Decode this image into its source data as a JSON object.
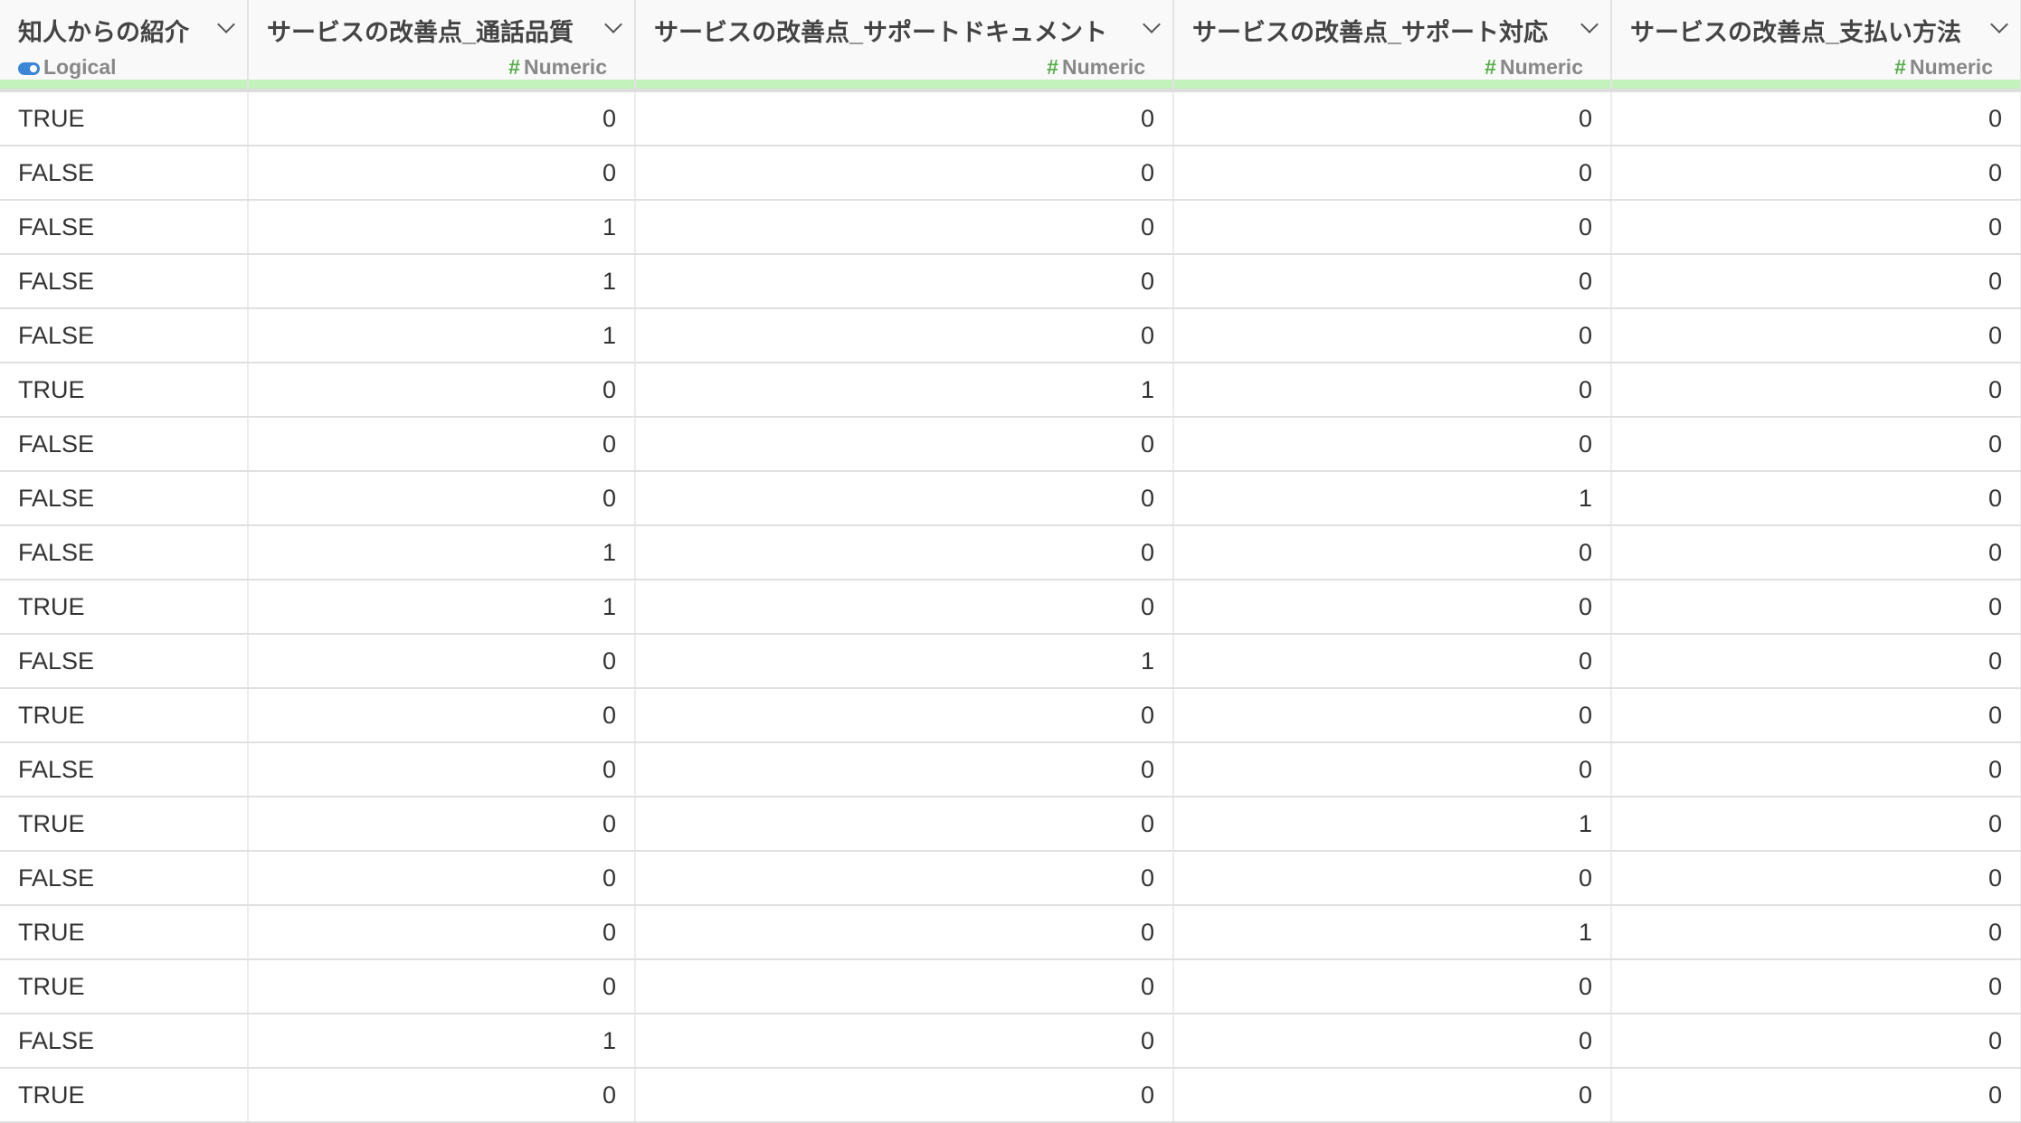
{
  "columns": [
    {
      "name": "知人からの紹介",
      "type": "Logical",
      "type_icon": "toggle-icon"
    },
    {
      "name": "サービスの改善点_通話品質",
      "type": "Numeric",
      "type_icon": "hash-icon"
    },
    {
      "name": "サービスの改善点_サポートドキュメント",
      "type": "Numeric",
      "type_icon": "hash-icon"
    },
    {
      "name": "サービスの改善点_サポート対応",
      "type": "Numeric",
      "type_icon": "hash-icon"
    },
    {
      "name": "サービスの改善点_支払い方法",
      "type": "Numeric",
      "type_icon": "hash-icon"
    }
  ],
  "hash_symbol": "#",
  "accent_colors": {
    "quality_bar": "#c4f2bc",
    "numeric_icon": "#5aad4e",
    "logical_icon": "#3b86d6"
  },
  "rows": [
    [
      "TRUE",
      "0",
      "0",
      "0",
      "0"
    ],
    [
      "FALSE",
      "0",
      "0",
      "0",
      "0"
    ],
    [
      "FALSE",
      "1",
      "0",
      "0",
      "0"
    ],
    [
      "FALSE",
      "1",
      "0",
      "0",
      "0"
    ],
    [
      "FALSE",
      "1",
      "0",
      "0",
      "0"
    ],
    [
      "TRUE",
      "0",
      "1",
      "0",
      "0"
    ],
    [
      "FALSE",
      "0",
      "0",
      "0",
      "0"
    ],
    [
      "FALSE",
      "0",
      "0",
      "1",
      "0"
    ],
    [
      "FALSE",
      "1",
      "0",
      "0",
      "0"
    ],
    [
      "TRUE",
      "1",
      "0",
      "0",
      "0"
    ],
    [
      "FALSE",
      "0",
      "1",
      "0",
      "0"
    ],
    [
      "TRUE",
      "0",
      "0",
      "0",
      "0"
    ],
    [
      "FALSE",
      "0",
      "0",
      "0",
      "0"
    ],
    [
      "TRUE",
      "0",
      "0",
      "1",
      "0"
    ],
    [
      "FALSE",
      "0",
      "0",
      "0",
      "0"
    ],
    [
      "TRUE",
      "0",
      "0",
      "1",
      "0"
    ],
    [
      "TRUE",
      "0",
      "0",
      "0",
      "0"
    ],
    [
      "FALSE",
      "1",
      "0",
      "0",
      "0"
    ],
    [
      "TRUE",
      "0",
      "0",
      "0",
      "0"
    ]
  ]
}
